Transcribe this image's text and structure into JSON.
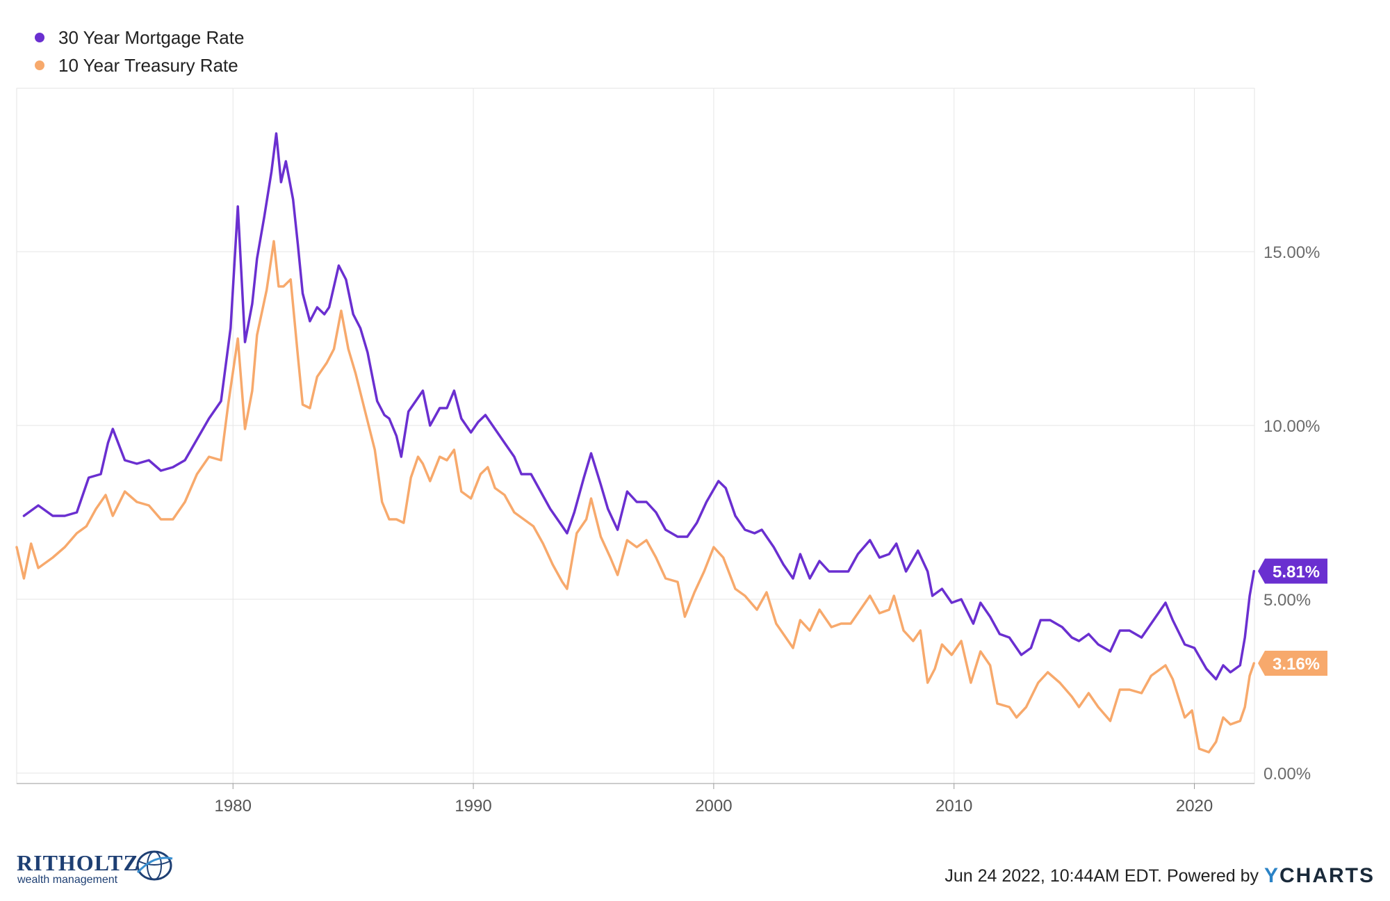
{
  "legend": [
    {
      "label": "30 Year Mortgage Rate",
      "color": "#6a2fd0"
    },
    {
      "label": "10 Year Treasury Rate",
      "color": "#f7a96c"
    }
  ],
  "footer": {
    "brand_name": "RITHOLTZ",
    "brand_sub": "wealth management",
    "timestamp": "Jun 24 2022, 10:44AM EDT. Powered by",
    "powered_brand_first": "Y",
    "powered_brand_rest": "CHARTS"
  },
  "chart_data": {
    "type": "line",
    "x_ticks": [
      "1980",
      "1990",
      "2000",
      "2010",
      "2020"
    ],
    "y_ticks": [
      "0.00%",
      "5.00%",
      "10.00%",
      "15.00%"
    ],
    "xlim": [
      1971.0,
      2022.5
    ],
    "ylim": [
      -0.3,
      19.7
    ],
    "grid": true,
    "legend_position": "top-left",
    "end_labels": [
      "5.81%",
      "3.16%"
    ],
    "series": [
      {
        "name": "30 Year Mortgage Rate",
        "color": "#6a2fd0",
        "points": [
          [
            1971.3,
            7.4
          ],
          [
            1971.9,
            7.7
          ],
          [
            1972.5,
            7.4
          ],
          [
            1973.0,
            7.4
          ],
          [
            1973.5,
            7.5
          ],
          [
            1974.0,
            8.5
          ],
          [
            1974.5,
            8.6
          ],
          [
            1974.8,
            9.5
          ],
          [
            1975.0,
            9.9
          ],
          [
            1975.5,
            9.0
          ],
          [
            1976.0,
            8.9
          ],
          [
            1976.5,
            9.0
          ],
          [
            1977.0,
            8.7
          ],
          [
            1977.5,
            8.8
          ],
          [
            1978.0,
            9.0
          ],
          [
            1978.5,
            9.6
          ],
          [
            1979.0,
            10.2
          ],
          [
            1979.5,
            10.7
          ],
          [
            1979.9,
            12.8
          ],
          [
            1980.2,
            16.3
          ],
          [
            1980.5,
            12.4
          ],
          [
            1980.8,
            13.5
          ],
          [
            1981.0,
            14.8
          ],
          [
            1981.3,
            16.0
          ],
          [
            1981.6,
            17.3
          ],
          [
            1981.8,
            18.4
          ],
          [
            1982.0,
            17.0
          ],
          [
            1982.2,
            17.6
          ],
          [
            1982.5,
            16.5
          ],
          [
            1982.7,
            15.2
          ],
          [
            1982.9,
            13.8
          ],
          [
            1983.2,
            13.0
          ],
          [
            1983.5,
            13.4
          ],
          [
            1983.8,
            13.2
          ],
          [
            1984.0,
            13.4
          ],
          [
            1984.4,
            14.6
          ],
          [
            1984.7,
            14.2
          ],
          [
            1985.0,
            13.2
          ],
          [
            1985.3,
            12.8
          ],
          [
            1985.6,
            12.1
          ],
          [
            1986.0,
            10.7
          ],
          [
            1986.3,
            10.3
          ],
          [
            1986.5,
            10.2
          ],
          [
            1986.8,
            9.7
          ],
          [
            1987.0,
            9.1
          ],
          [
            1987.3,
            10.4
          ],
          [
            1987.6,
            10.7
          ],
          [
            1987.9,
            11.0
          ],
          [
            1988.2,
            10.0
          ],
          [
            1988.6,
            10.5
          ],
          [
            1988.9,
            10.5
          ],
          [
            1989.2,
            11.0
          ],
          [
            1989.5,
            10.2
          ],
          [
            1989.9,
            9.8
          ],
          [
            1990.2,
            10.1
          ],
          [
            1990.5,
            10.3
          ],
          [
            1990.9,
            9.9
          ],
          [
            1991.3,
            9.5
          ],
          [
            1991.7,
            9.1
          ],
          [
            1992.0,
            8.6
          ],
          [
            1992.4,
            8.6
          ],
          [
            1992.8,
            8.1
          ],
          [
            1993.2,
            7.6
          ],
          [
            1993.6,
            7.2
          ],
          [
            1993.9,
            6.9
          ],
          [
            1994.2,
            7.5
          ],
          [
            1994.6,
            8.5
          ],
          [
            1994.9,
            9.2
          ],
          [
            1995.3,
            8.3
          ],
          [
            1995.6,
            7.6
          ],
          [
            1996.0,
            7.0
          ],
          [
            1996.4,
            8.1
          ],
          [
            1996.8,
            7.8
          ],
          [
            1997.2,
            7.8
          ],
          [
            1997.6,
            7.5
          ],
          [
            1998.0,
            7.0
          ],
          [
            1998.5,
            6.8
          ],
          [
            1998.9,
            6.8
          ],
          [
            1999.3,
            7.2
          ],
          [
            1999.7,
            7.8
          ],
          [
            2000.2,
            8.4
          ],
          [
            2000.5,
            8.2
          ],
          [
            2000.9,
            7.4
          ],
          [
            2001.3,
            7.0
          ],
          [
            2001.7,
            6.9
          ],
          [
            2002.0,
            7.0
          ],
          [
            2002.5,
            6.5
          ],
          [
            2002.9,
            6.0
          ],
          [
            2003.3,
            5.6
          ],
          [
            2003.6,
            6.3
          ],
          [
            2004.0,
            5.6
          ],
          [
            2004.4,
            6.1
          ],
          [
            2004.8,
            5.8
          ],
          [
            2005.2,
            5.8
          ],
          [
            2005.6,
            5.8
          ],
          [
            2006.0,
            6.3
          ],
          [
            2006.5,
            6.7
          ],
          [
            2006.9,
            6.2
          ],
          [
            2007.3,
            6.3
          ],
          [
            2007.6,
            6.6
          ],
          [
            2008.0,
            5.8
          ],
          [
            2008.5,
            6.4
          ],
          [
            2008.9,
            5.8
          ],
          [
            2009.1,
            5.1
          ],
          [
            2009.5,
            5.3
          ],
          [
            2009.9,
            4.9
          ],
          [
            2010.3,
            5.0
          ],
          [
            2010.8,
            4.3
          ],
          [
            2011.1,
            4.9
          ],
          [
            2011.5,
            4.5
          ],
          [
            2011.9,
            4.0
          ],
          [
            2012.3,
            3.9
          ],
          [
            2012.8,
            3.4
          ],
          [
            2013.2,
            3.6
          ],
          [
            2013.6,
            4.4
          ],
          [
            2014.0,
            4.4
          ],
          [
            2014.5,
            4.2
          ],
          [
            2014.9,
            3.9
          ],
          [
            2015.2,
            3.8
          ],
          [
            2015.6,
            4.0
          ],
          [
            2016.0,
            3.7
          ],
          [
            2016.5,
            3.5
          ],
          [
            2016.9,
            4.1
          ],
          [
            2017.3,
            4.1
          ],
          [
            2017.8,
            3.9
          ],
          [
            2018.3,
            4.4
          ],
          [
            2018.8,
            4.9
          ],
          [
            2019.1,
            4.4
          ],
          [
            2019.6,
            3.7
          ],
          [
            2020.0,
            3.6
          ],
          [
            2020.5,
            3.0
          ],
          [
            2020.9,
            2.7
          ],
          [
            2021.2,
            3.1
          ],
          [
            2021.5,
            2.9
          ],
          [
            2021.9,
            3.1
          ],
          [
            2022.1,
            3.9
          ],
          [
            2022.3,
            5.1
          ],
          [
            2022.48,
            5.81
          ]
        ]
      },
      {
        "name": "10 Year Treasury Rate",
        "color": "#f7a96c",
        "points": [
          [
            1971.0,
            6.5
          ],
          [
            1971.3,
            5.6
          ],
          [
            1971.6,
            6.6
          ],
          [
            1971.9,
            5.9
          ],
          [
            1972.5,
            6.2
          ],
          [
            1973.0,
            6.5
          ],
          [
            1973.5,
            6.9
          ],
          [
            1973.9,
            7.1
          ],
          [
            1974.3,
            7.6
          ],
          [
            1974.7,
            8.0
          ],
          [
            1975.0,
            7.4
          ],
          [
            1975.5,
            8.1
          ],
          [
            1976.0,
            7.8
          ],
          [
            1976.5,
            7.7
          ],
          [
            1977.0,
            7.3
          ],
          [
            1977.5,
            7.3
          ],
          [
            1978.0,
            7.8
          ],
          [
            1978.5,
            8.6
          ],
          [
            1979.0,
            9.1
          ],
          [
            1979.5,
            9.0
          ],
          [
            1979.8,
            10.6
          ],
          [
            1980.2,
            12.5
          ],
          [
            1980.5,
            9.9
          ],
          [
            1980.8,
            11.0
          ],
          [
            1981.0,
            12.6
          ],
          [
            1981.4,
            13.9
          ],
          [
            1981.7,
            15.3
          ],
          [
            1981.9,
            14.0
          ],
          [
            1982.1,
            14.0
          ],
          [
            1982.4,
            14.2
          ],
          [
            1982.7,
            12.0
          ],
          [
            1982.9,
            10.6
          ],
          [
            1983.2,
            10.5
          ],
          [
            1983.5,
            11.4
          ],
          [
            1983.9,
            11.8
          ],
          [
            1984.2,
            12.2
          ],
          [
            1984.5,
            13.3
          ],
          [
            1984.8,
            12.2
          ],
          [
            1985.1,
            11.5
          ],
          [
            1985.5,
            10.4
          ],
          [
            1985.9,
            9.3
          ],
          [
            1986.2,
            7.8
          ],
          [
            1986.5,
            7.3
          ],
          [
            1986.8,
            7.3
          ],
          [
            1987.1,
            7.2
          ],
          [
            1987.4,
            8.5
          ],
          [
            1987.7,
            9.1
          ],
          [
            1987.9,
            8.9
          ],
          [
            1988.2,
            8.4
          ],
          [
            1988.6,
            9.1
          ],
          [
            1988.9,
            9.0
          ],
          [
            1989.2,
            9.3
          ],
          [
            1989.5,
            8.1
          ],
          [
            1989.9,
            7.9
          ],
          [
            1990.3,
            8.6
          ],
          [
            1990.6,
            8.8
          ],
          [
            1990.9,
            8.2
          ],
          [
            1991.3,
            8.0
          ],
          [
            1991.7,
            7.5
          ],
          [
            1992.1,
            7.3
          ],
          [
            1992.5,
            7.1
          ],
          [
            1992.9,
            6.6
          ],
          [
            1993.3,
            6.0
          ],
          [
            1993.7,
            5.5
          ],
          [
            1993.9,
            5.3
          ],
          [
            1994.3,
            6.9
          ],
          [
            1994.7,
            7.3
          ],
          [
            1994.9,
            7.9
          ],
          [
            1995.3,
            6.8
          ],
          [
            1995.7,
            6.2
          ],
          [
            1996.0,
            5.7
          ],
          [
            1996.4,
            6.7
          ],
          [
            1996.8,
            6.5
          ],
          [
            1997.2,
            6.7
          ],
          [
            1997.6,
            6.2
          ],
          [
            1998.0,
            5.6
          ],
          [
            1998.5,
            5.5
          ],
          [
            1998.8,
            4.5
          ],
          [
            1999.2,
            5.2
          ],
          [
            1999.6,
            5.8
          ],
          [
            2000.0,
            6.5
          ],
          [
            2000.4,
            6.2
          ],
          [
            2000.9,
            5.3
          ],
          [
            2001.3,
            5.1
          ],
          [
            2001.8,
            4.7
          ],
          [
            2002.2,
            5.2
          ],
          [
            2002.6,
            4.3
          ],
          [
            2002.9,
            4.0
          ],
          [
            2003.3,
            3.6
          ],
          [
            2003.6,
            4.4
          ],
          [
            2004.0,
            4.1
          ],
          [
            2004.4,
            4.7
          ],
          [
            2004.9,
            4.2
          ],
          [
            2005.3,
            4.3
          ],
          [
            2005.7,
            4.3
          ],
          [
            2006.0,
            4.6
          ],
          [
            2006.5,
            5.1
          ],
          [
            2006.9,
            4.6
          ],
          [
            2007.3,
            4.7
          ],
          [
            2007.5,
            5.1
          ],
          [
            2007.9,
            4.1
          ],
          [
            2008.3,
            3.8
          ],
          [
            2008.6,
            4.1
          ],
          [
            2008.9,
            2.6
          ],
          [
            2009.2,
            3.0
          ],
          [
            2009.5,
            3.7
          ],
          [
            2009.9,
            3.4
          ],
          [
            2010.3,
            3.8
          ],
          [
            2010.7,
            2.6
          ],
          [
            2011.1,
            3.5
          ],
          [
            2011.5,
            3.1
          ],
          [
            2011.8,
            2.0
          ],
          [
            2012.3,
            1.9
          ],
          [
            2012.6,
            1.6
          ],
          [
            2013.0,
            1.9
          ],
          [
            2013.5,
            2.6
          ],
          [
            2013.9,
            2.9
          ],
          [
            2014.4,
            2.6
          ],
          [
            2014.9,
            2.2
          ],
          [
            2015.2,
            1.9
          ],
          [
            2015.6,
            2.3
          ],
          [
            2016.0,
            1.9
          ],
          [
            2016.5,
            1.5
          ],
          [
            2016.9,
            2.4
          ],
          [
            2017.3,
            2.4
          ],
          [
            2017.8,
            2.3
          ],
          [
            2018.2,
            2.8
          ],
          [
            2018.8,
            3.1
          ],
          [
            2019.1,
            2.7
          ],
          [
            2019.6,
            1.6
          ],
          [
            2019.9,
            1.8
          ],
          [
            2020.2,
            0.7
          ],
          [
            2020.6,
            0.6
          ],
          [
            2020.9,
            0.9
          ],
          [
            2021.2,
            1.6
          ],
          [
            2021.5,
            1.4
          ],
          [
            2021.9,
            1.5
          ],
          [
            2022.1,
            1.9
          ],
          [
            2022.3,
            2.8
          ],
          [
            2022.48,
            3.16
          ]
        ]
      }
    ]
  }
}
